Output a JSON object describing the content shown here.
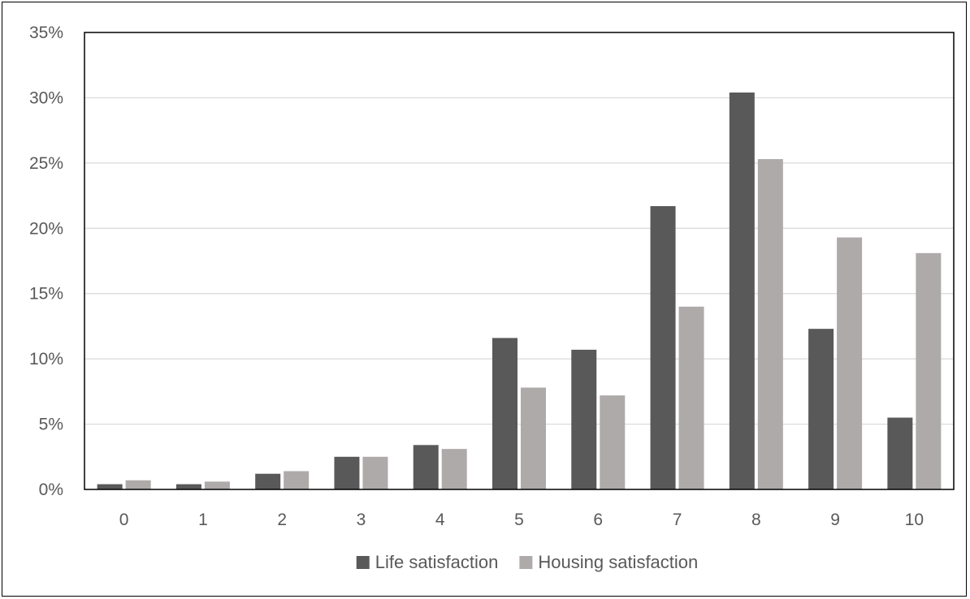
{
  "chart_data": {
    "type": "bar",
    "title": "",
    "xlabel": "",
    "ylabel": "",
    "categories": [
      "0",
      "1",
      "2",
      "3",
      "4",
      "5",
      "6",
      "7",
      "8",
      "9",
      "10"
    ],
    "series": [
      {
        "name": "Life satisfaction",
        "color": "#595959",
        "values": [
          0.4,
          0.4,
          1.2,
          2.5,
          3.4,
          11.6,
          10.7,
          21.7,
          30.4,
          12.3,
          5.5
        ]
      },
      {
        "name": "Housing satisfaction",
        "color": "#aeaaaa",
        "values": [
          0.7,
          0.6,
          1.4,
          2.5,
          3.1,
          7.8,
          7.2,
          14.0,
          25.3,
          19.3,
          18.1
        ]
      }
    ],
    "y_ticks": [
      "0%",
      "5%",
      "10%",
      "15%",
      "20%",
      "25%",
      "30%",
      "35%"
    ],
    "ylim": [
      0,
      35
    ],
    "grid": true,
    "legend_position": "bottom"
  }
}
